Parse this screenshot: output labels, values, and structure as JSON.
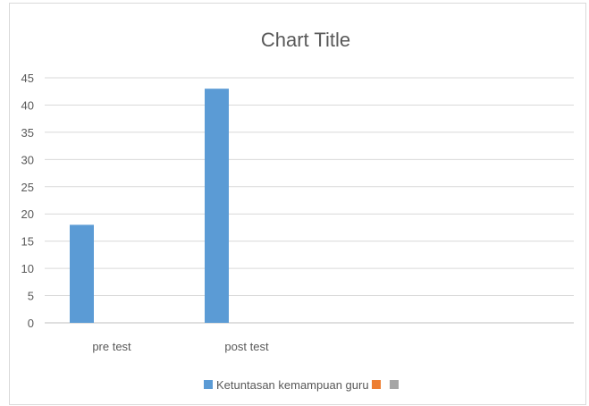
{
  "chart_data": {
    "type": "bar",
    "title": "Chart Title",
    "categories": [
      "pre test",
      "post test"
    ],
    "series": [
      {
        "name": "Ketuntasan kemampuan guru",
        "color": "#5b9bd5",
        "values": [
          18,
          43
        ]
      },
      {
        "name": "",
        "color": "#ed7d31",
        "values": [
          null,
          null
        ]
      },
      {
        "name": "",
        "color": "#a5a5a5",
        "values": [
          null,
          null
        ]
      }
    ],
    "ylim": [
      0,
      45
    ],
    "yticks": [
      0,
      5,
      10,
      15,
      20,
      25,
      30,
      35,
      40,
      45
    ],
    "grid": true,
    "legend_position": "bottom",
    "xlabel": "",
    "ylabel": ""
  }
}
